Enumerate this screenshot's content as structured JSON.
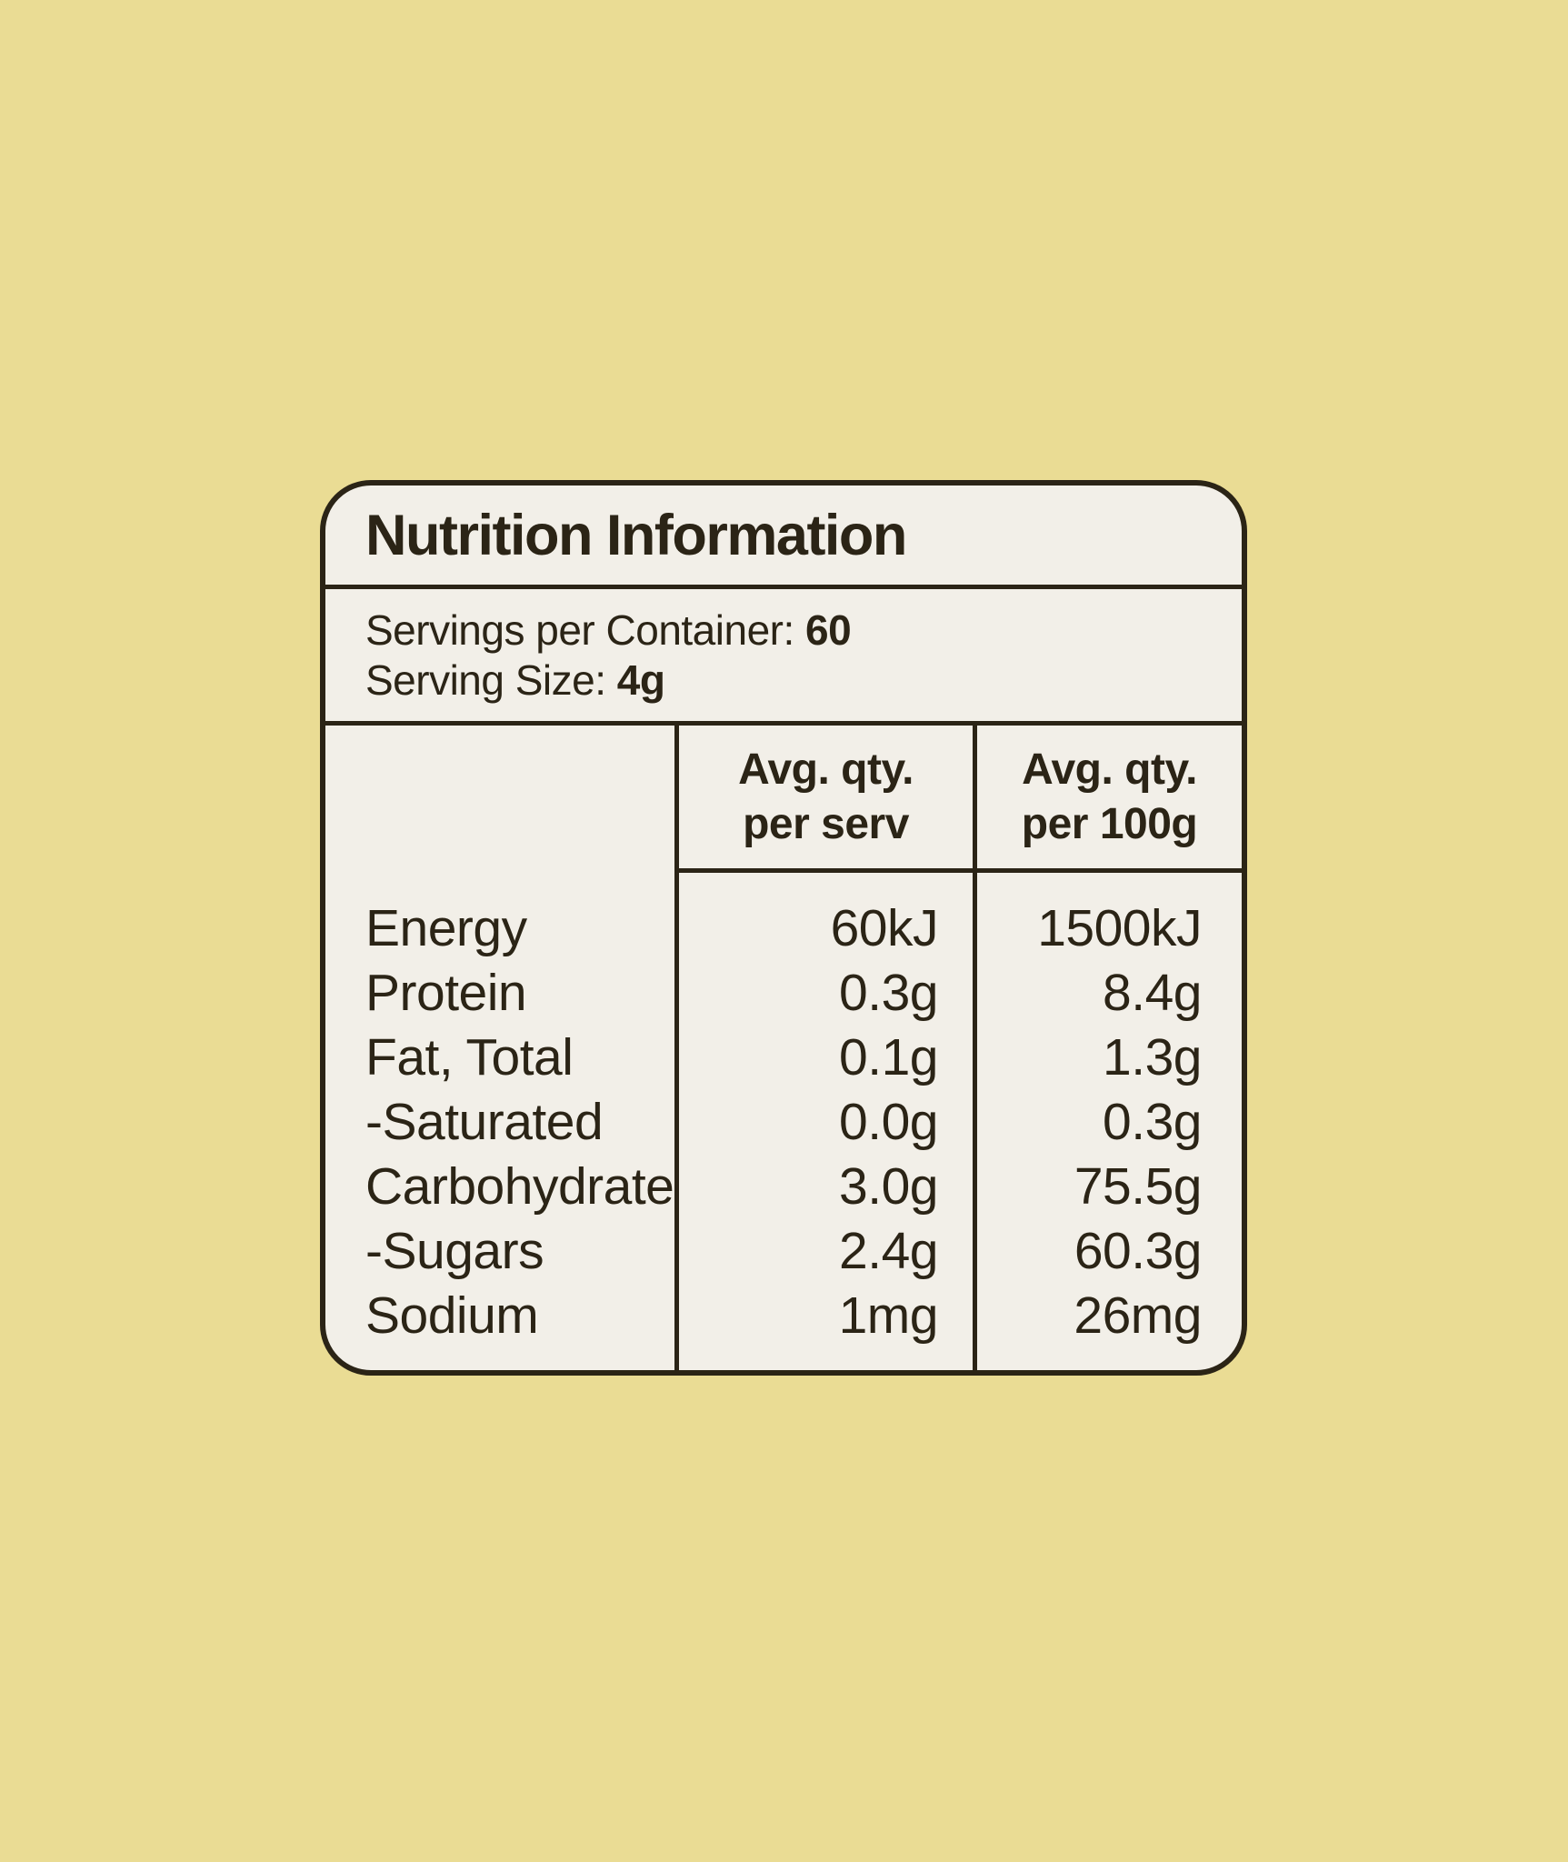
{
  "colors": {
    "background": "#EADC94",
    "card_background": "#F2EFE8",
    "ink": "#2B2416"
  },
  "label": {
    "title": "Nutrition Information",
    "servings_per_container_label": "Servings per Container:",
    "servings_per_container_value": "60",
    "serving_size_label": "Serving Size:",
    "serving_size_value": "4g",
    "table": {
      "col2_header_line1": "Avg. qty.",
      "col2_header_line2": "per serv",
      "col3_header_line1": "Avg. qty.",
      "col3_header_line2": "per 100g",
      "rows": [
        {
          "name": "Energy",
          "per_serv": "60kJ",
          "per_100g": "1500kJ"
        },
        {
          "name": "Protein",
          "per_serv": "0.3g",
          "per_100g": "8.4g"
        },
        {
          "name": "Fat, Total",
          "per_serv": "0.1g",
          "per_100g": "1.3g"
        },
        {
          "name": "-Saturated",
          "per_serv": "0.0g",
          "per_100g": "0.3g"
        },
        {
          "name": "Carbohydrate",
          "per_serv": "3.0g",
          "per_100g": "75.5g"
        },
        {
          "name": "-Sugars",
          "per_serv": "2.4g",
          "per_100g": "60.3g"
        },
        {
          "name": "Sodium",
          "per_serv": "1mg",
          "per_100g": "26mg"
        }
      ]
    }
  }
}
